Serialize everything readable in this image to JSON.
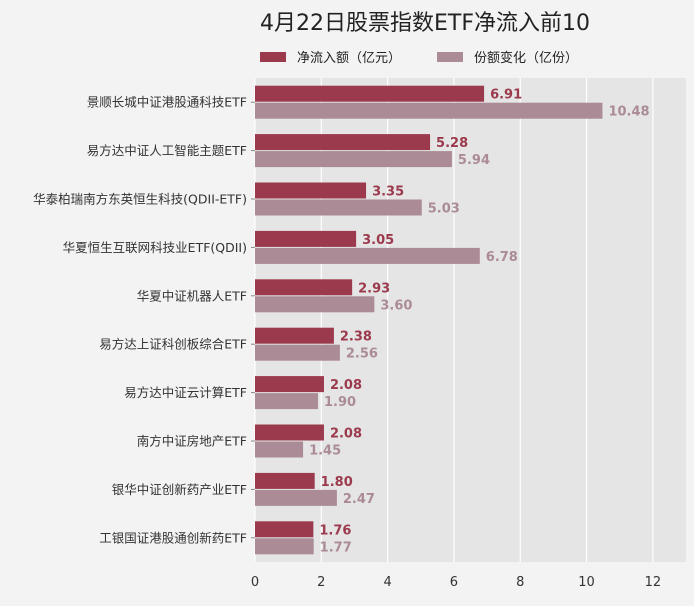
{
  "chart_data": {
    "type": "bar",
    "orientation": "horizontal",
    "title": "4月22日股票指数ETF净流入前10",
    "xlabel": "",
    "ylabel": "",
    "xlim": [
      0,
      13
    ],
    "xticks": [
      0,
      2,
      4,
      6,
      8,
      10,
      12
    ],
    "grid": true,
    "legend_position": "top",
    "categories": [
      "景顺长城中证港股通科技ETF",
      "易方达中证人工智能主题ETF",
      "华泰柏瑞南方东英恒生科技(QDII-ETF)",
      "华夏恒生互联网科技业ETF(QDII)",
      "华夏中证机器人ETF",
      "易方达上证科创板综合ETF",
      "易方达中证云计算ETF",
      "南方中证房地产ETF",
      "银华中证创新药产业ETF",
      "工银国证港股通创新药ETF"
    ],
    "series": [
      {
        "name": "净流入额（亿元）",
        "color": "#9b3a4c",
        "values": [
          6.91,
          5.28,
          3.35,
          3.05,
          2.93,
          2.38,
          2.08,
          2.08,
          1.8,
          1.76
        ],
        "labels": [
          "6.91",
          "5.28",
          "3.35",
          "3.05",
          "2.93",
          "2.38",
          "2.08",
          "2.08",
          "1.80",
          "1.76"
        ]
      },
      {
        "name": "份额变化（亿份）",
        "color": "#ab8b95",
        "values": [
          10.48,
          5.94,
          5.03,
          6.78,
          3.6,
          2.56,
          1.9,
          1.45,
          2.47,
          1.77
        ],
        "labels": [
          "10.48",
          "5.94",
          "5.03",
          "6.78",
          "3.60",
          "2.56",
          "1.90",
          "1.45",
          "2.47",
          "1.77"
        ]
      }
    ]
  }
}
